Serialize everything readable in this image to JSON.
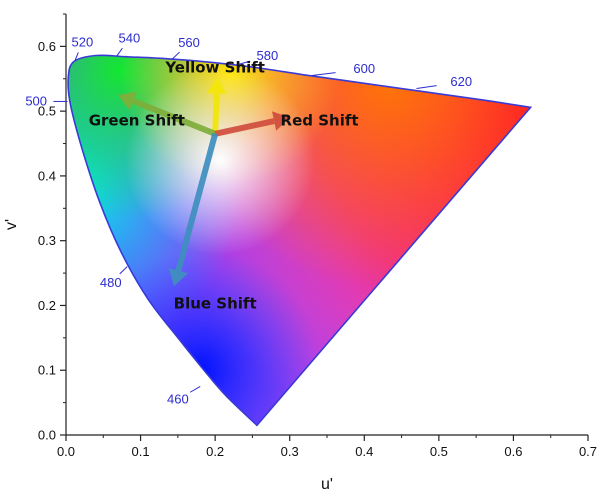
{
  "chart_data": {
    "type": "scatter",
    "title": "",
    "xlabel": "u'",
    "ylabel": "v'",
    "xlim": [
      0.0,
      0.7
    ],
    "ylim": [
      0.0,
      0.65
    ],
    "xticks": [
      "0.0",
      "0.1",
      "0.2",
      "0.3",
      "0.4",
      "0.5",
      "0.6",
      "0.7"
    ],
    "yticks": [
      "0.0",
      "0.1",
      "0.2",
      "0.3",
      "0.4",
      "0.5",
      "0.6"
    ],
    "grid": false,
    "spectral_locus": [
      {
        "u": 0.256,
        "v": 0.015
      },
      {
        "u": 0.215,
        "v": 0.06
      },
      {
        "u": 0.185,
        "v": 0.1
      },
      {
        "u": 0.15,
        "v": 0.15
      },
      {
        "u": 0.11,
        "v": 0.21
      },
      {
        "u": 0.075,
        "v": 0.28
      },
      {
        "u": 0.045,
        "v": 0.36
      },
      {
        "u": 0.022,
        "v": 0.44
      },
      {
        "u": 0.006,
        "v": 0.51
      },
      {
        "u": 0.003,
        "v": 0.55
      },
      {
        "u": 0.01,
        "v": 0.576
      },
      {
        "u": 0.04,
        "v": 0.586
      },
      {
        "u": 0.08,
        "v": 0.584
      },
      {
        "u": 0.12,
        "v": 0.582
      },
      {
        "u": 0.18,
        "v": 0.577
      },
      {
        "u": 0.25,
        "v": 0.568
      },
      {
        "u": 0.32,
        "v": 0.556
      },
      {
        "u": 0.4,
        "v": 0.543
      },
      {
        "u": 0.48,
        "v": 0.53
      },
      {
        "u": 0.56,
        "v": 0.517
      },
      {
        "u": 0.623,
        "v": 0.506
      }
    ],
    "wavelength_labels": [
      {
        "text": "460",
        "u": 0.18,
        "v": 0.075,
        "lx": 0.15,
        "ly": 0.055
      },
      {
        "text": "480",
        "u": 0.082,
        "v": 0.26,
        "lx": 0.06,
        "ly": 0.235
      },
      {
        "text": "500",
        "u": 0.002,
        "v": 0.515,
        "lx": -0.04,
        "ly": 0.515
      },
      {
        "text": "520",
        "u": 0.012,
        "v": 0.578,
        "lx": 0.022,
        "ly": 0.606
      },
      {
        "text": "540",
        "u": 0.068,
        "v": 0.585,
        "lx": 0.085,
        "ly": 0.612
      },
      {
        "text": "560",
        "u": 0.142,
        "v": 0.58,
        "lx": 0.165,
        "ly": 0.605
      },
      {
        "text": "580",
        "u": 0.228,
        "v": 0.571,
        "lx": 0.27,
        "ly": 0.585
      },
      {
        "text": "600",
        "u": 0.33,
        "v": 0.555,
        "lx": 0.4,
        "ly": 0.565
      },
      {
        "text": "620",
        "u": 0.47,
        "v": 0.535,
        "lx": 0.53,
        "ly": 0.545
      }
    ],
    "shift_arrows": [
      {
        "label": "Yellow Shift",
        "from_u": 0.2,
        "from_v": 0.465,
        "to_u": 0.203,
        "to_v": 0.552,
        "color": "#f2e60a",
        "label_u": 0.2,
        "label_v": 0.56
      },
      {
        "label": "Green Shift",
        "from_u": 0.2,
        "from_v": 0.465,
        "to_u": 0.07,
        "to_v": 0.525,
        "color": "#7fae3a",
        "label_u": 0.095,
        "label_v": 0.478
      },
      {
        "label": "Red Shift",
        "from_u": 0.2,
        "from_v": 0.465,
        "to_u": 0.3,
        "to_v": 0.49,
        "color": "#d14e3e",
        "label_u": 0.34,
        "label_v": 0.478
      },
      {
        "label": "Blue Shift",
        "from_u": 0.2,
        "from_v": 0.465,
        "to_u": 0.145,
        "to_v": 0.23,
        "color": "#3f8fbf",
        "label_u": 0.2,
        "label_v": 0.195
      }
    ],
    "colors": {
      "locus_stroke": "#3a3ad6",
      "label_color": "#2c2ccf"
    }
  }
}
